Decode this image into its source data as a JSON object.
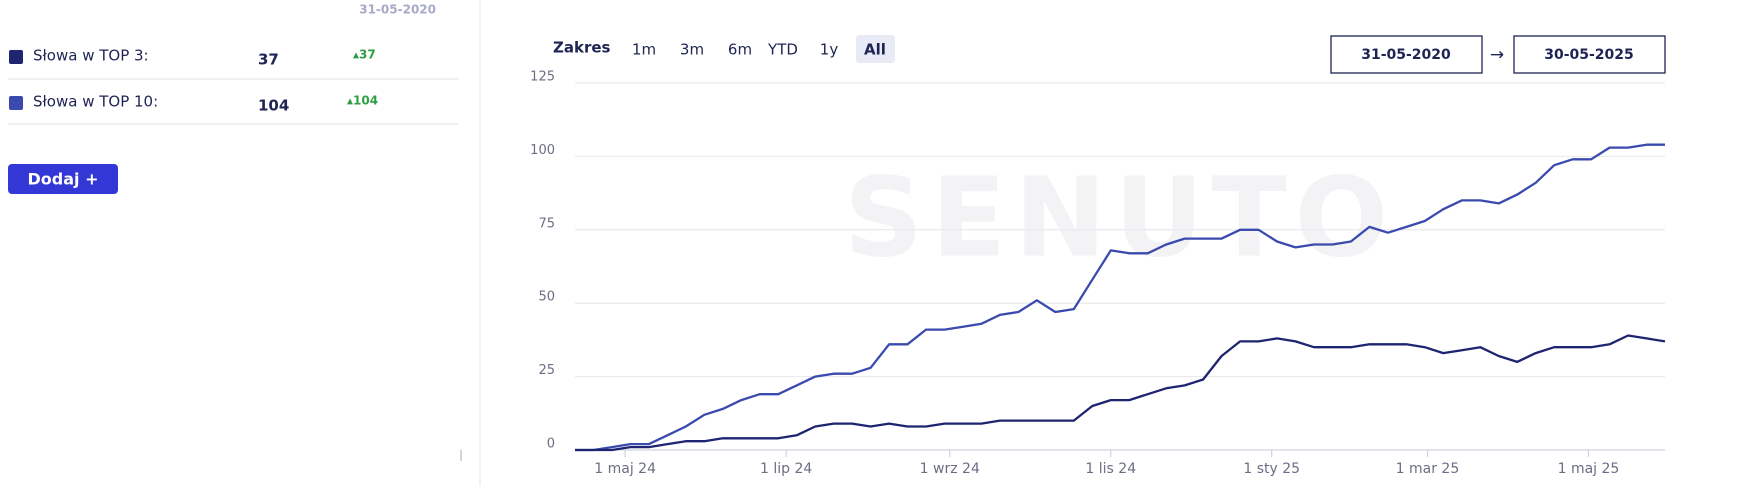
{
  "panel": {
    "date": "31-05-2020",
    "rows": [
      {
        "label": "Słowa w TOP 3:",
        "value": 37,
        "change": "▴37",
        "color": "#1e2470"
      },
      {
        "label": "Słowa w TOP 10:",
        "value": 104,
        "change": "▴104",
        "color": "#3a4aae"
      }
    ],
    "button": "Dodaj +"
  },
  "range": {
    "label": "Zakres",
    "options": [
      "1m",
      "3m",
      "6m",
      "YTD",
      "1y",
      "All"
    ],
    "active": "All",
    "from": "31-05-2020",
    "arrow": "→",
    "to": "30-05-2025"
  },
  "chart_data": {
    "type": "line",
    "watermark": "SENUTO",
    "x": [
      "2024-04-12",
      "2024-04-19",
      "2024-04-26",
      "2024-05-03",
      "2024-05-10",
      "2024-05-17",
      "2024-05-24",
      "2024-05-31",
      "2024-06-07",
      "2024-06-14",
      "2024-06-21",
      "2024-06-28",
      "2024-07-05",
      "2024-07-12",
      "2024-07-19",
      "2024-07-26",
      "2024-08-02",
      "2024-08-09",
      "2024-08-16",
      "2024-08-23",
      "2024-08-30",
      "2024-09-06",
      "2024-09-13",
      "2024-09-20",
      "2024-09-27",
      "2024-10-04",
      "2024-10-11",
      "2024-10-18",
      "2024-10-25",
      "2024-11-01",
      "2024-11-08",
      "2024-11-15",
      "2024-11-22",
      "2024-11-29",
      "2024-12-06",
      "2024-12-13",
      "2024-12-20",
      "2024-12-27",
      "2025-01-03",
      "2025-01-10",
      "2025-01-17",
      "2025-01-24",
      "2025-01-31",
      "2025-02-07",
      "2025-02-14",
      "2025-02-21",
      "2025-02-28",
      "2025-03-07",
      "2025-03-14",
      "2025-03-21",
      "2025-03-28",
      "2025-04-04",
      "2025-04-11",
      "2025-04-18",
      "2025-04-25",
      "2025-05-02",
      "2025-05-09",
      "2025-05-16",
      "2025-05-23",
      "2025-05-30"
    ],
    "series": [
      {
        "name": "Słowa w TOP 10:",
        "color": "#3a4aae",
        "values": [
          0,
          0,
          1,
          2,
          2,
          5,
          8,
          12,
          14,
          17,
          19,
          19,
          22,
          25,
          26,
          26,
          28,
          36,
          36,
          41,
          41,
          42,
          43,
          46,
          47,
          51,
          47,
          48,
          58,
          68,
          67,
          67,
          70,
          72,
          72,
          72,
          75,
          75,
          71,
          69,
          70,
          70,
          71,
          76,
          74,
          76,
          78,
          82,
          85,
          85,
          84,
          87,
          91,
          97,
          99,
          99,
          103,
          103,
          104,
          104
        ]
      },
      {
        "name": "Słowa w TOP 3:",
        "color": "#1e2470",
        "values": [
          0,
          0,
          0,
          1,
          1,
          2,
          3,
          3,
          4,
          4,
          4,
          4,
          5,
          8,
          9,
          9,
          8,
          9,
          8,
          8,
          9,
          9,
          9,
          10,
          10,
          10,
          10,
          10,
          15,
          17,
          17,
          19,
          21,
          22,
          24,
          32,
          37,
          37,
          38,
          37,
          35,
          35,
          35,
          36,
          36,
          36,
          35,
          33,
          34,
          35,
          32,
          30,
          33,
          35,
          35,
          35,
          36,
          39,
          38,
          37
        ]
      }
    ],
    "xlim": [
      "2024-04-12",
      "2025-05-30"
    ],
    "xticks": [
      {
        "value": "2024-05-01",
        "label": "1 maj 24"
      },
      {
        "value": "2024-07-01",
        "label": "1 lip 24"
      },
      {
        "value": "2024-09-01",
        "label": "1 wrz 24"
      },
      {
        "value": "2024-11-01",
        "label": "1 lis 24"
      },
      {
        "value": "2025-01-01",
        "label": "1 sty 25"
      },
      {
        "value": "2025-03-01",
        "label": "1 mar 25"
      },
      {
        "value": "2025-05-01",
        "label": "1 maj 25"
      }
    ],
    "ylim": [
      0,
      125
    ],
    "yticks": [
      0,
      25,
      50,
      75,
      100,
      125
    ],
    "grid": true
  }
}
